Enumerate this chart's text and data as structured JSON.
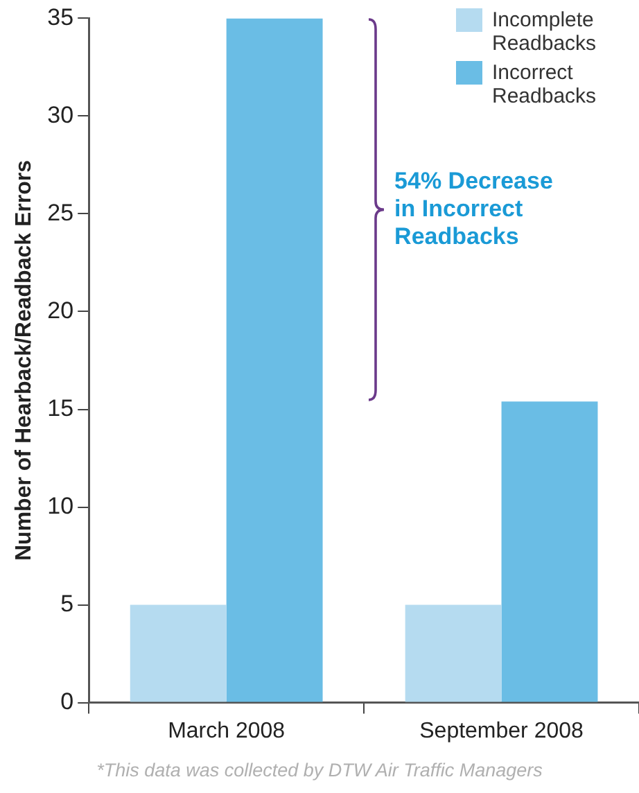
{
  "chart_data": {
    "type": "bar",
    "ylabel": "Number of Hearback/Readback Errors",
    "categories": [
      "March 2008",
      "September 2008"
    ],
    "series": [
      {
        "name": "Incomplete Readbacks",
        "color": "#b5dbf0",
        "values": [
          5,
          5
        ]
      },
      {
        "name": "Incorrect Readbacks",
        "color": "#6abde5",
        "values": [
          35,
          15.4
        ]
      }
    ],
    "ylim": [
      0,
      35
    ],
    "yticks": [
      0,
      5,
      10,
      15,
      20,
      25,
      30,
      35
    ],
    "grid": false,
    "legend": "top right",
    "annotations": [
      "54% Decrease in Incorrect Readbacks",
      "*This data was collected by DTW Air Traffic Managers"
    ]
  }
}
